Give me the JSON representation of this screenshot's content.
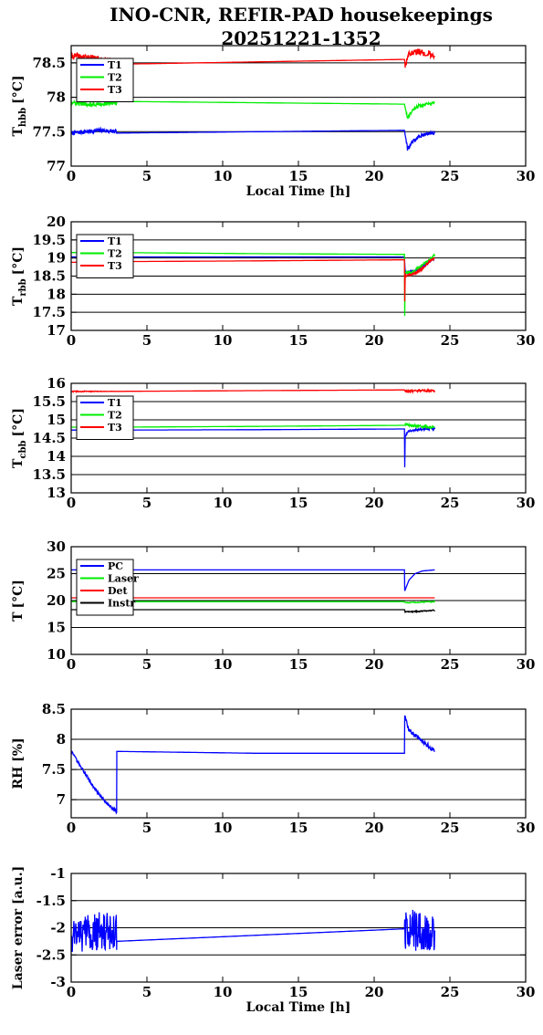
{
  "title_line1": "INO-CNR, REFIR-PAD housekeepings",
  "title_line2": "20251221-1352",
  "colors": {
    "T1": "#0000ff",
    "T2": "#00ee00",
    "T3": "#ff0000",
    "PC": "#0000ff",
    "Laser": "#00ee00",
    "Det": "#ff0000",
    "Instr": "#000000"
  },
  "chart_data": [
    {
      "type": "line",
      "title": "",
      "xlabel": "Local Time [h]",
      "ylabel": "T_hbb [°C]",
      "ylabel_main": "T",
      "ylabel_sub": "hbb",
      "ylabel_unit": "[°C]",
      "xlim": [
        0,
        30
      ],
      "ylim": [
        77,
        78.75
      ],
      "xticks": [
        0,
        5,
        10,
        15,
        20,
        25,
        30
      ],
      "yticks": [
        77,
        77.5,
        78,
        78.5
      ],
      "ytick_labels": [
        "77",
        "77.5",
        "78",
        "78.5"
      ],
      "legend": "top-left",
      "grid": "horizontal",
      "series": [
        {
          "name": "T1",
          "color": "#0000ff",
          "x": [
            0,
            1,
            2,
            3,
            3.01,
            22,
            22.2,
            22.6,
            23,
            23.5,
            24
          ],
          "y": [
            77.48,
            77.5,
            77.52,
            77.5,
            77.48,
            77.52,
            77.25,
            77.38,
            77.44,
            77.47,
            77.48
          ],
          "noise": [
            0.03,
            0.03,
            0.03,
            0.03,
            0,
            0,
            0.04,
            0.04,
            0.03,
            0.02,
            0.02
          ]
        },
        {
          "name": "T2",
          "color": "#00ee00",
          "x": [
            0,
            1,
            2,
            3,
            3.01,
            22,
            22.2,
            22.6,
            23,
            23.5,
            24
          ],
          "y": [
            77.92,
            77.9,
            77.9,
            77.92,
            77.94,
            77.9,
            77.7,
            77.82,
            77.88,
            77.9,
            77.92
          ],
          "noise": [
            0.03,
            0.03,
            0.03,
            0.03,
            0,
            0,
            0.03,
            0.03,
            0.03,
            0.02,
            0.02
          ]
        },
        {
          "name": "T3",
          "color": "#ff0000",
          "x": [
            0,
            1,
            2,
            3,
            3.01,
            22,
            22.05,
            22.3,
            23,
            23.5,
            24
          ],
          "y": [
            78.6,
            78.58,
            78.55,
            78.52,
            78.48,
            78.55,
            78.45,
            78.65,
            78.66,
            78.64,
            78.6
          ],
          "noise": [
            0.05,
            0.05,
            0.04,
            0.03,
            0,
            0,
            0.05,
            0.05,
            0.05,
            0.05,
            0.04
          ]
        }
      ]
    },
    {
      "type": "line",
      "title": "",
      "xlabel": "",
      "ylabel": "T_rbb [°C]",
      "ylabel_main": "T",
      "ylabel_sub": "rbb",
      "ylabel_unit": "[°C]",
      "xlim": [
        0,
        30
      ],
      "ylim": [
        17,
        20
      ],
      "xticks": [
        0,
        5,
        10,
        15,
        20,
        25,
        30
      ],
      "yticks": [
        17,
        17.5,
        18,
        18.5,
        19,
        19.5,
        20
      ],
      "ytick_labels": [
        "17",
        "17.5",
        "18",
        "18.5",
        "19",
        "19.5",
        "20"
      ],
      "legend": "top-left",
      "grid": "horizontal",
      "series": [
        {
          "name": "T1",
          "color": "#0000ff",
          "x": [
            0,
            3,
            12,
            22,
            22.05,
            22.5,
            23,
            23.5,
            24
          ],
          "y": [
            19.03,
            19.03,
            19.03,
            19.03,
            18.6,
            18.62,
            18.7,
            18.85,
            19.0
          ],
          "noise": [
            0,
            0,
            0,
            0,
            0.03,
            0.03,
            0.03,
            0.03,
            0.03
          ]
        },
        {
          "name": "T2",
          "color": "#00ee00",
          "x": [
            0,
            3,
            12,
            22,
            22.02,
            22.05,
            22.5,
            23,
            23.5,
            24
          ],
          "y": [
            19.15,
            19.15,
            19.12,
            19.1,
            17.4,
            18.6,
            18.6,
            18.75,
            18.9,
            19.1
          ],
          "noise": [
            0,
            0,
            0,
            0,
            0,
            0.04,
            0.04,
            0.04,
            0.04,
            0.03
          ]
        },
        {
          "name": "T3",
          "color": "#ff0000",
          "x": [
            0,
            3,
            12,
            22,
            22.02,
            22.05,
            22.5,
            23,
            23.5,
            24
          ],
          "y": [
            18.88,
            18.9,
            18.92,
            18.95,
            17.8,
            18.5,
            18.55,
            18.65,
            18.85,
            19.0
          ],
          "noise": [
            0,
            0,
            0,
            0,
            0,
            0.04,
            0.04,
            0.04,
            0.04,
            0.03
          ]
        }
      ]
    },
    {
      "type": "line",
      "title": "",
      "xlabel": "",
      "ylabel": "T_cbb [°C]",
      "ylabel_main": "T",
      "ylabel_sub": "cbb",
      "ylabel_unit": "[°C]",
      "xlim": [
        0,
        30
      ],
      "ylim": [
        13,
        16
      ],
      "xticks": [
        0,
        5,
        10,
        15,
        20,
        25,
        30
      ],
      "yticks": [
        13,
        13.5,
        14,
        14.5,
        15,
        15.5,
        16
      ],
      "ytick_labels": [
        "13",
        "13.5",
        "14",
        "14.5",
        "15",
        "15.5",
        "16"
      ],
      "legend": "top-left",
      "grid": "horizontal",
      "series": [
        {
          "name": "T1",
          "color": "#0000ff",
          "x": [
            0,
            3,
            12,
            22,
            22.02,
            22.05,
            22.3,
            23,
            24
          ],
          "y": [
            14.72,
            14.72,
            14.73,
            14.75,
            13.7,
            14.55,
            14.7,
            14.74,
            14.75
          ],
          "noise": [
            0,
            0,
            0,
            0,
            0,
            0.03,
            0.03,
            0.03,
            0.03
          ]
        },
        {
          "name": "T2",
          "color": "#00ee00",
          "x": [
            0,
            3,
            12,
            22,
            22.05,
            22.3,
            23,
            24
          ],
          "y": [
            14.8,
            14.8,
            14.82,
            14.85,
            14.88,
            14.85,
            14.82,
            14.8
          ],
          "noise": [
            0,
            0,
            0,
            0,
            0.04,
            0.04,
            0.04,
            0.03
          ]
        },
        {
          "name": "T3",
          "color": "#ff0000",
          "x": [
            0,
            3,
            12,
            22,
            22.05,
            23,
            24
          ],
          "y": [
            15.78,
            15.78,
            15.8,
            15.82,
            15.78,
            15.8,
            15.8
          ],
          "noise": [
            0.02,
            0,
            0,
            0,
            0.03,
            0.03,
            0.03
          ]
        }
      ]
    },
    {
      "type": "line",
      "title": "",
      "xlabel": "",
      "ylabel": "T [°C]",
      "ylabel_main": "T",
      "ylabel_sub": "",
      "ylabel_unit": "[°C]",
      "xlim": [
        0,
        30
      ],
      "ylim": [
        10,
        30
      ],
      "xticks": [
        0,
        5,
        10,
        15,
        20,
        25,
        30
      ],
      "yticks": [
        10,
        15,
        20,
        25,
        30
      ],
      "ytick_labels": [
        "10",
        "15",
        "20",
        "25",
        "30"
      ],
      "legend": "top-left",
      "grid": "horizontal",
      "series": [
        {
          "name": "PC",
          "color": "#0000ff",
          "x": [
            0,
            3,
            12,
            22,
            22.02,
            22.3,
            22.7,
            23.2,
            24
          ],
          "y": [
            25.7,
            25.7,
            25.7,
            25.7,
            21.8,
            23.8,
            25.0,
            25.5,
            25.7
          ],
          "noise": [
            0,
            0,
            0,
            0,
            0,
            0,
            0,
            0,
            0
          ]
        },
        {
          "name": "Laser",
          "color": "#00ee00",
          "x": [
            0,
            3,
            12,
            22,
            22.05,
            23,
            24
          ],
          "y": [
            19.8,
            19.8,
            19.8,
            19.8,
            19.6,
            19.7,
            19.8
          ],
          "noise": [
            0,
            0,
            0,
            0,
            0.1,
            0.1,
            0.1
          ]
        },
        {
          "name": "Det",
          "color": "#ff0000",
          "x": [
            0,
            3,
            12,
            22,
            22.05,
            23,
            24
          ],
          "y": [
            20.5,
            20.5,
            20.5,
            20.5,
            20.5,
            20.5,
            20.5
          ],
          "noise": [
            0,
            0,
            0,
            0,
            0,
            0,
            0
          ]
        },
        {
          "name": "Instr",
          "color": "#000000",
          "x": [
            0,
            3,
            12,
            22,
            22.05,
            23,
            24
          ],
          "y": [
            18.3,
            18.3,
            18.3,
            18.3,
            17.9,
            18.0,
            18.2
          ],
          "noise": [
            0,
            0,
            0,
            0,
            0.1,
            0.1,
            0.1
          ]
        }
      ]
    },
    {
      "type": "line",
      "title": "",
      "xlabel": "",
      "ylabel": "RH [%]",
      "ylabel_main": "RH [%]",
      "ylabel_sub": "",
      "ylabel_unit": "",
      "xlim": [
        0,
        30
      ],
      "ylim": [
        6.7,
        8.5
      ],
      "xticks": [
        0,
        5,
        10,
        15,
        20,
        25,
        30
      ],
      "yticks": [
        7,
        7.5,
        8,
        8.5
      ],
      "ytick_labels": [
        "7",
        "7.5",
        "8",
        "8.5"
      ],
      "legend": "none",
      "grid": "horizontal",
      "series": [
        {
          "name": "",
          "color": "#0000ff",
          "x": [
            0,
            0.5,
            1,
            1.5,
            2,
            2.5,
            3,
            3.01,
            12,
            22,
            22.02,
            22.3,
            22.8,
            23.3,
            24
          ],
          "y": [
            7.8,
            7.6,
            7.4,
            7.2,
            7.05,
            6.9,
            6.8,
            7.8,
            7.77,
            7.77,
            8.4,
            8.15,
            8.05,
            7.95,
            7.8
          ],
          "noise": [
            0.02,
            0.03,
            0.03,
            0.03,
            0.03,
            0.03,
            0.03,
            0,
            0,
            0,
            0.03,
            0.04,
            0.04,
            0.04,
            0.04
          ]
        }
      ]
    },
    {
      "type": "line",
      "title": "",
      "xlabel": "Local Time [h]",
      "ylabel": "Laser error [a.u.]",
      "ylabel_main": "Laser error [a.u.]",
      "ylabel_sub": "",
      "ylabel_unit": "",
      "xlim": [
        0,
        30
      ],
      "ylim": [
        -3,
        -1
      ],
      "xticks": [
        0,
        5,
        10,
        15,
        20,
        25,
        30
      ],
      "yticks": [
        -3,
        -2.5,
        -2,
        -1.5,
        -1
      ],
      "ytick_labels": [
        "-3",
        "-2.5",
        "-2",
        "-1.5",
        "-1"
      ],
      "legend": "none",
      "grid": "horizontal",
      "series": [
        {
          "name": "",
          "color": "#0000ff",
          "x": [
            0,
            1,
            2,
            3,
            3.01,
            22,
            22.02,
            23,
            24
          ],
          "y": [
            -2.1,
            -2.1,
            -2.05,
            -2.1,
            -2.25,
            -2.02,
            -2.05,
            -2.05,
            -2.05
          ],
          "noise": [
            0.35,
            0.35,
            0.35,
            0.35,
            0,
            0,
            0.38,
            0.38,
            0.38
          ]
        }
      ]
    }
  ]
}
